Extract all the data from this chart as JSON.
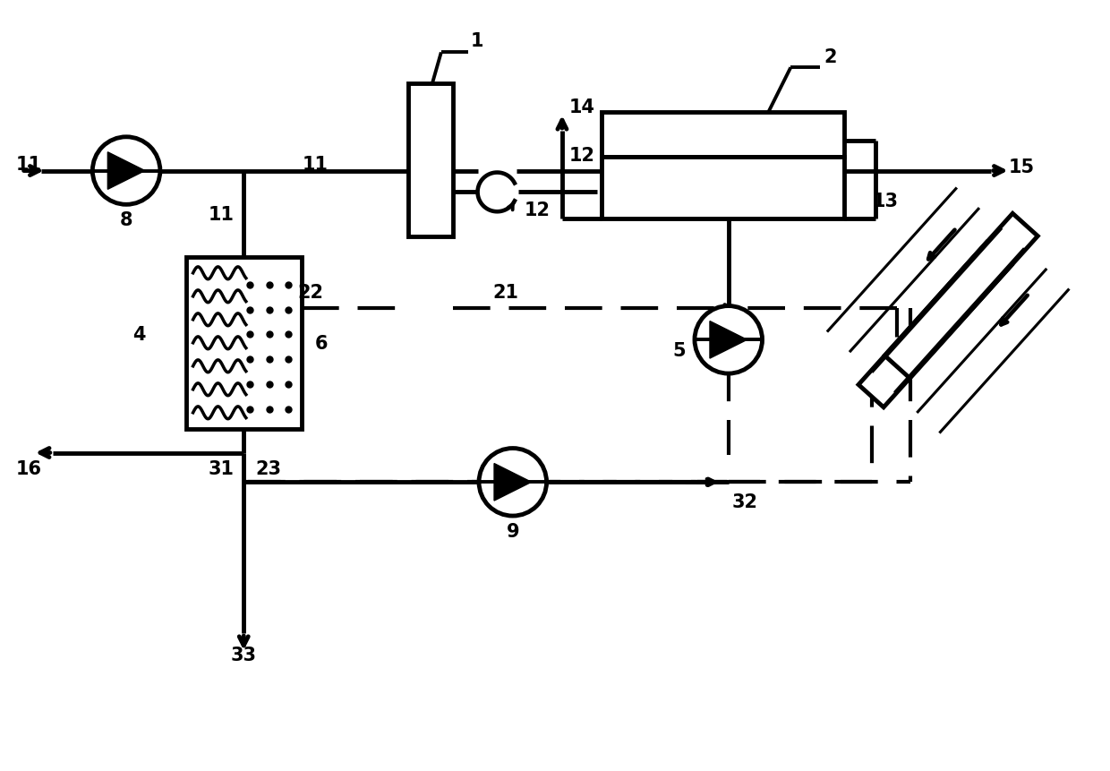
{
  "bg_color": "#ffffff",
  "lc": "#000000",
  "lw": 2.8,
  "tlw": 3.5,
  "dlw": 3.0,
  "fig_w": 12.4,
  "fig_h": 8.62,
  "xlim": [
    0,
    12.4
  ],
  "ylim": [
    0,
    8.62
  ]
}
